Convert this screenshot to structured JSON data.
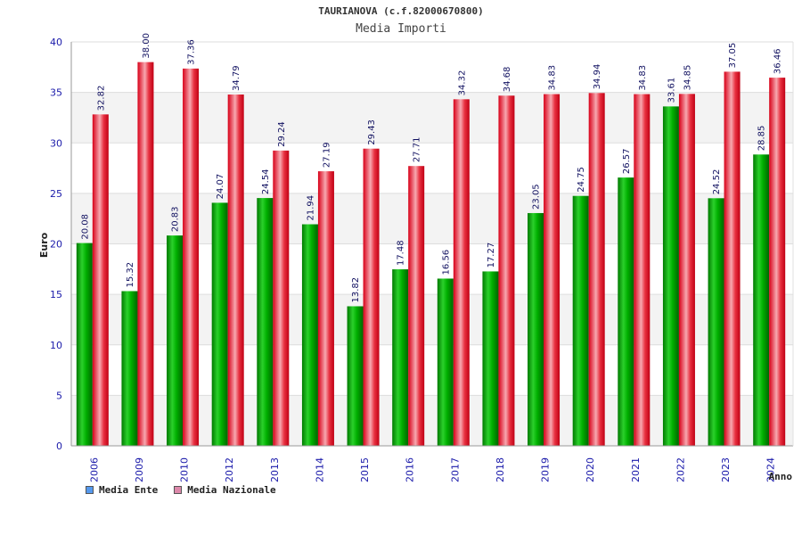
{
  "chart_data": {
    "type": "bar",
    "title": "TAURIANOVA (c.f.82000670800)",
    "subtitle": "Media Importi",
    "ylabel": "Euro",
    "xlabel": "Anno",
    "ylim": [
      0,
      40
    ],
    "yticks": [
      0,
      5,
      10,
      15,
      20,
      25,
      30,
      35,
      40
    ],
    "grid": true,
    "legend_placement": "bottom-left",
    "categories": [
      "2006",
      "2009",
      "2010",
      "2012",
      "2013",
      "2014",
      "2015",
      "2016",
      "2017",
      "2018",
      "2019",
      "2020",
      "2021",
      "2022",
      "2023",
      "2024"
    ],
    "series": [
      {
        "name": "Media Ente",
        "color": "#00b000",
        "legend_color": "#5599ee",
        "values": [
          20.08,
          15.32,
          20.83,
          24.07,
          24.54,
          21.94,
          13.82,
          17.48,
          16.56,
          17.27,
          23.05,
          24.75,
          26.57,
          33.61,
          24.52,
          28.85
        ],
        "labels": [
          "20.08",
          "15.32",
          "20.83",
          "24.07",
          "24.54",
          "21.94",
          "13.82",
          "17.48",
          "16.56",
          "17.27",
          "23.05",
          "24.75",
          "26.57",
          "33.61",
          "24.52",
          "28.85"
        ]
      },
      {
        "name": "Media Nazionale",
        "color": "#e8001c",
        "legend_color": "#dd88aa",
        "values": [
          32.82,
          38.0,
          37.36,
          34.79,
          29.24,
          27.19,
          29.43,
          27.71,
          34.32,
          34.68,
          34.83,
          34.94,
          34.83,
          34.85,
          37.05,
          36.46
        ],
        "labels": [
          "32.82",
          "38.00",
          "37.36",
          "34.79",
          "29.24",
          "27.19",
          "29.43",
          "27.71",
          "34.32",
          "34.68",
          "34.83",
          "34.94",
          "34.83",
          "34.85",
          "37.05",
          "36.46"
        ]
      }
    ]
  }
}
